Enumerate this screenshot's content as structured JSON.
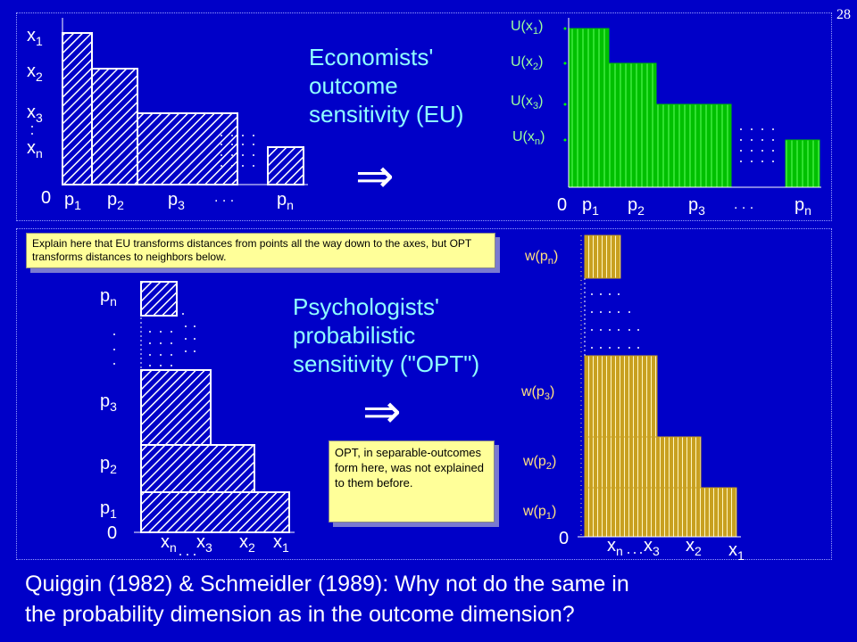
{
  "slide_number": "28",
  "top_title_lines": [
    "Economists'",
    "outcome",
    "sensitivity (EU)"
  ],
  "mid_title_lines": [
    "Psychologists'",
    "probabilistic",
    "sensitivity (\"OPT\")"
  ],
  "arrow_symbol": "⇒",
  "note_eu": "Explain here that EU transforms distances from points all the way down to the axes, but OPT transforms distances to neighbors below.",
  "note_opt": "OPT, in separable-outcomes form here, was not explained to them before.",
  "bottom_caption_lines": [
    "Quiggin (1982) & Schmeidler (1989): Why not do the same in",
    "the probability dimension as in the outcome dimension?"
  ],
  "zero": "0",
  "dots": ". . .",
  "colors": {
    "background": "#0000c8",
    "text": "#ffffff",
    "accent_cyan": "#8fffff",
    "eu_green": "#00c000",
    "opt_gold": "#c8a020",
    "note_bg": "#ffff99"
  },
  "diagrams": {
    "eu_outcomes": {
      "y_labels": [
        {
          "b": "x",
          "s": "1"
        },
        {
          "b": "x",
          "s": "2"
        },
        {
          "b": "x",
          "s": "3"
        },
        {
          "b": "x",
          "s": "n"
        }
      ],
      "x_labels": [
        {
          "b": "p",
          "s": "1"
        },
        {
          "b": "p",
          "s": "2"
        },
        {
          "b": "p",
          "s": "3"
        },
        {
          "b": "p",
          "s": "n"
        }
      ]
    },
    "eu_utilities": {
      "y_labels": [
        {
          "b": "U(x",
          "s": "1",
          "a": ")"
        },
        {
          "b": "U(x",
          "s": "2",
          "a": ")"
        },
        {
          "b": "U(x",
          "s": "3",
          "a": ")"
        },
        {
          "b": "U(x",
          "s": "n",
          "a": ")"
        }
      ],
      "x_labels": [
        {
          "b": "p",
          "s": "1"
        },
        {
          "b": "p",
          "s": "2"
        },
        {
          "b": "p",
          "s": "3"
        },
        {
          "b": "p",
          "s": "n"
        }
      ]
    },
    "opt_probabilities": {
      "y_labels": [
        {
          "b": "p",
          "s": "n"
        },
        {
          "b": "p",
          "s": "3"
        },
        {
          "b": "p",
          "s": "2"
        },
        {
          "b": "p",
          "s": "1"
        }
      ],
      "x_labels": [
        {
          "b": "x",
          "s": "n"
        },
        {
          "b": "x",
          "s": "3"
        },
        {
          "b": "x",
          "s": "2"
        },
        {
          "b": "x",
          "s": "1"
        }
      ]
    },
    "opt_weights": {
      "y_labels": [
        {
          "b": "w(p",
          "s": "n",
          "a": ")"
        },
        {
          "b": "w(p",
          "s": "3",
          "a": ")"
        },
        {
          "b": "w(p",
          "s": "2",
          "a": ")"
        },
        {
          "b": "w(p",
          "s": "1",
          "a": ")"
        }
      ],
      "x_labels": [
        {
          "b": "x",
          "s": "n"
        },
        {
          "b": "x",
          "s": "3"
        },
        {
          "b": "x",
          "s": "2"
        },
        {
          "b": "x",
          "s": "1"
        }
      ]
    }
  }
}
